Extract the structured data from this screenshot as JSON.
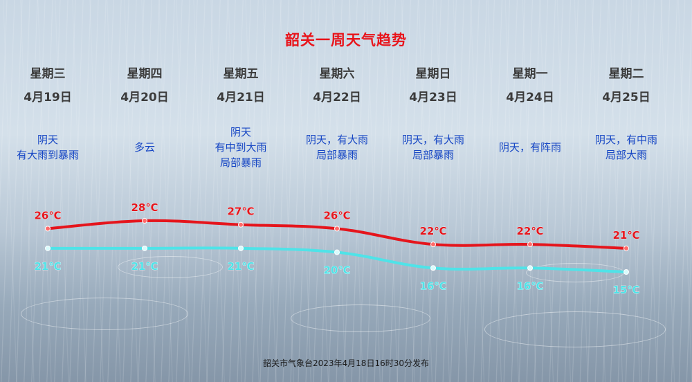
{
  "title": "韶关一周天气趋势",
  "footer": "韶关市气象台2023年4月18日16时30分发布",
  "days": [
    {
      "weekday": "星期三",
      "date": "4月19日",
      "weather": [
        "阴天",
        "有大雨到暴雨"
      ]
    },
    {
      "weekday": "星期四",
      "date": "4月20日",
      "weather": [
        "多云"
      ]
    },
    {
      "weekday": "星期五",
      "date": "4月21日",
      "weather": [
        "阴天",
        "有中到大雨",
        "局部暴雨"
      ]
    },
    {
      "weekday": "星期六",
      "date": "4月22日",
      "weather": [
        "阴天，有大雨",
        "局部暴雨"
      ]
    },
    {
      "weekday": "星期日",
      "date": "4月23日",
      "weather": [
        "阴天，有大雨",
        "局部暴雨"
      ]
    },
    {
      "weekday": "星期一",
      "date": "4月24日",
      "weather": [
        "阴天，有阵雨"
      ]
    },
    {
      "weekday": "星期二",
      "date": "4月25日",
      "weather": [
        "阴天，有中雨",
        "局部大雨"
      ]
    }
  ],
  "chart_data": {
    "type": "line",
    "categories": [
      "4月19日",
      "4月20日",
      "4月21日",
      "4月22日",
      "4月23日",
      "4月24日",
      "4月25日"
    ],
    "series": [
      {
        "values": [
          26,
          28,
          27,
          26,
          22,
          22,
          21
        ],
        "labels": [
          "26℃",
          "28℃",
          "27℃",
          "26℃",
          "22℃",
          "22℃",
          "21℃"
        ],
        "color": "#e5151c"
      },
      {
        "values": [
          21,
          21,
          21,
          20,
          16,
          16,
          15
        ],
        "labels": [
          "21℃",
          "21℃",
          "21℃",
          "20℃",
          "16℃",
          "16℃",
          "15℃"
        ],
        "color": "#4fe3e8"
      }
    ],
    "unit": "℃",
    "grid": false
  },
  "colors": {
    "title": "#e8141b",
    "weather_text": "#1646c4",
    "high": "#e5151c",
    "low": "#4fe3e8"
  }
}
